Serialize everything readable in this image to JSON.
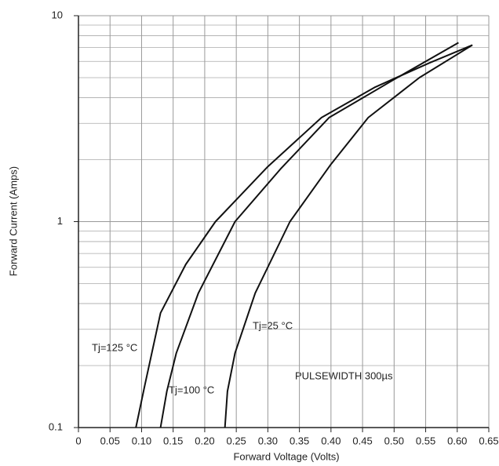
{
  "chart_data": {
    "type": "line",
    "x_label": "Forward Voltage (Volts)",
    "y_label": "Forward Current (Amps)",
    "y_scale": "log",
    "grid": true,
    "xlim": [
      0,
      0.65
    ],
    "ylim": [
      0.1,
      10
    ],
    "xticks": [
      0,
      0.05,
      {
        "value": 0.1,
        "label": "0.10"
      },
      0.15,
      {
        "value": 0.2,
        "label": "0.20"
      },
      0.25,
      {
        "value": 0.3,
        "label": "0.30"
      },
      0.35,
      {
        "value": 0.4,
        "label": "0.40"
      },
      0.45,
      {
        "value": 0.5,
        "label": "0.50"
      },
      0.55,
      {
        "value": 0.6,
        "label": "0.60"
      },
      0.65
    ],
    "yticks": [
      0.1,
      1,
      10
    ],
    "annotations": [
      "PULSEWIDTH 300µs"
    ],
    "series": [
      {
        "name": "Tj=125 °C",
        "color": "#111111",
        "x": [
          0.091,
          0.105,
          0.13,
          0.17,
          0.217,
          0.3,
          0.385,
          0.47,
          0.556,
          0.624
        ],
        "values": [
          0.1,
          0.16,
          0.36,
          0.62,
          1.0,
          1.85,
          3.2,
          4.5,
          5.9,
          7.2
        ]
      },
      {
        "name": "Tj=100 °C",
        "color": "#111111",
        "x": [
          0.13,
          0.14,
          0.155,
          0.19,
          0.248,
          0.32,
          0.397,
          0.5,
          0.602
        ],
        "values": [
          0.1,
          0.15,
          0.23,
          0.45,
          1.0,
          1.8,
          3.2,
          4.9,
          7.4
        ]
      },
      {
        "name": "Tj=25 °C",
        "color": "#111111",
        "x": [
          0.232,
          0.236,
          0.248,
          0.28,
          0.335,
          0.4,
          0.459,
          0.54,
          0.624
        ],
        "values": [
          0.1,
          0.15,
          0.23,
          0.45,
          1.0,
          1.9,
          3.2,
          5.0,
          7.2
        ]
      }
    ]
  }
}
